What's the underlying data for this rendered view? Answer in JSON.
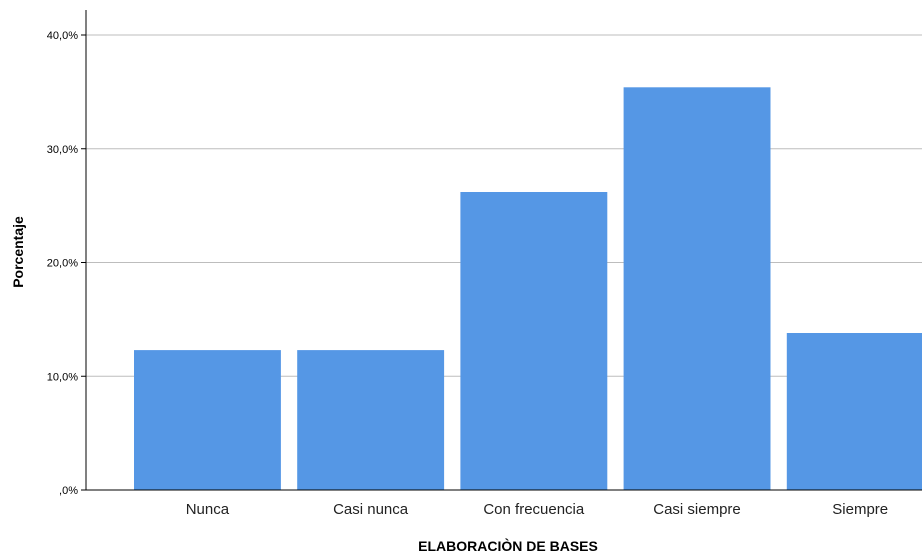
{
  "chart_data": {
    "type": "bar",
    "xlabel": "ELABORACIÒN DE BASES",
    "ylabel": "Porcentaje",
    "categories": [
      "Nunca",
      "Casi nunca",
      "Con frecuencia",
      "Casi siempre",
      "Siempre"
    ],
    "values": [
      12.3,
      12.3,
      26.2,
      35.4,
      13.8
    ],
    "ylim": [
      0,
      40
    ],
    "y_ticks": [
      {
        "value": 0,
        "label": ",0%"
      },
      {
        "value": 10,
        "label": "10,0%"
      },
      {
        "value": 20,
        "label": "20,0%"
      },
      {
        "value": 30,
        "label": "30,0%"
      },
      {
        "value": 40,
        "label": "40,0%"
      }
    ],
    "grid": true,
    "colors": {
      "bar": "#5597e5",
      "grid": "#bdbdbd",
      "axis": "#000000"
    }
  }
}
